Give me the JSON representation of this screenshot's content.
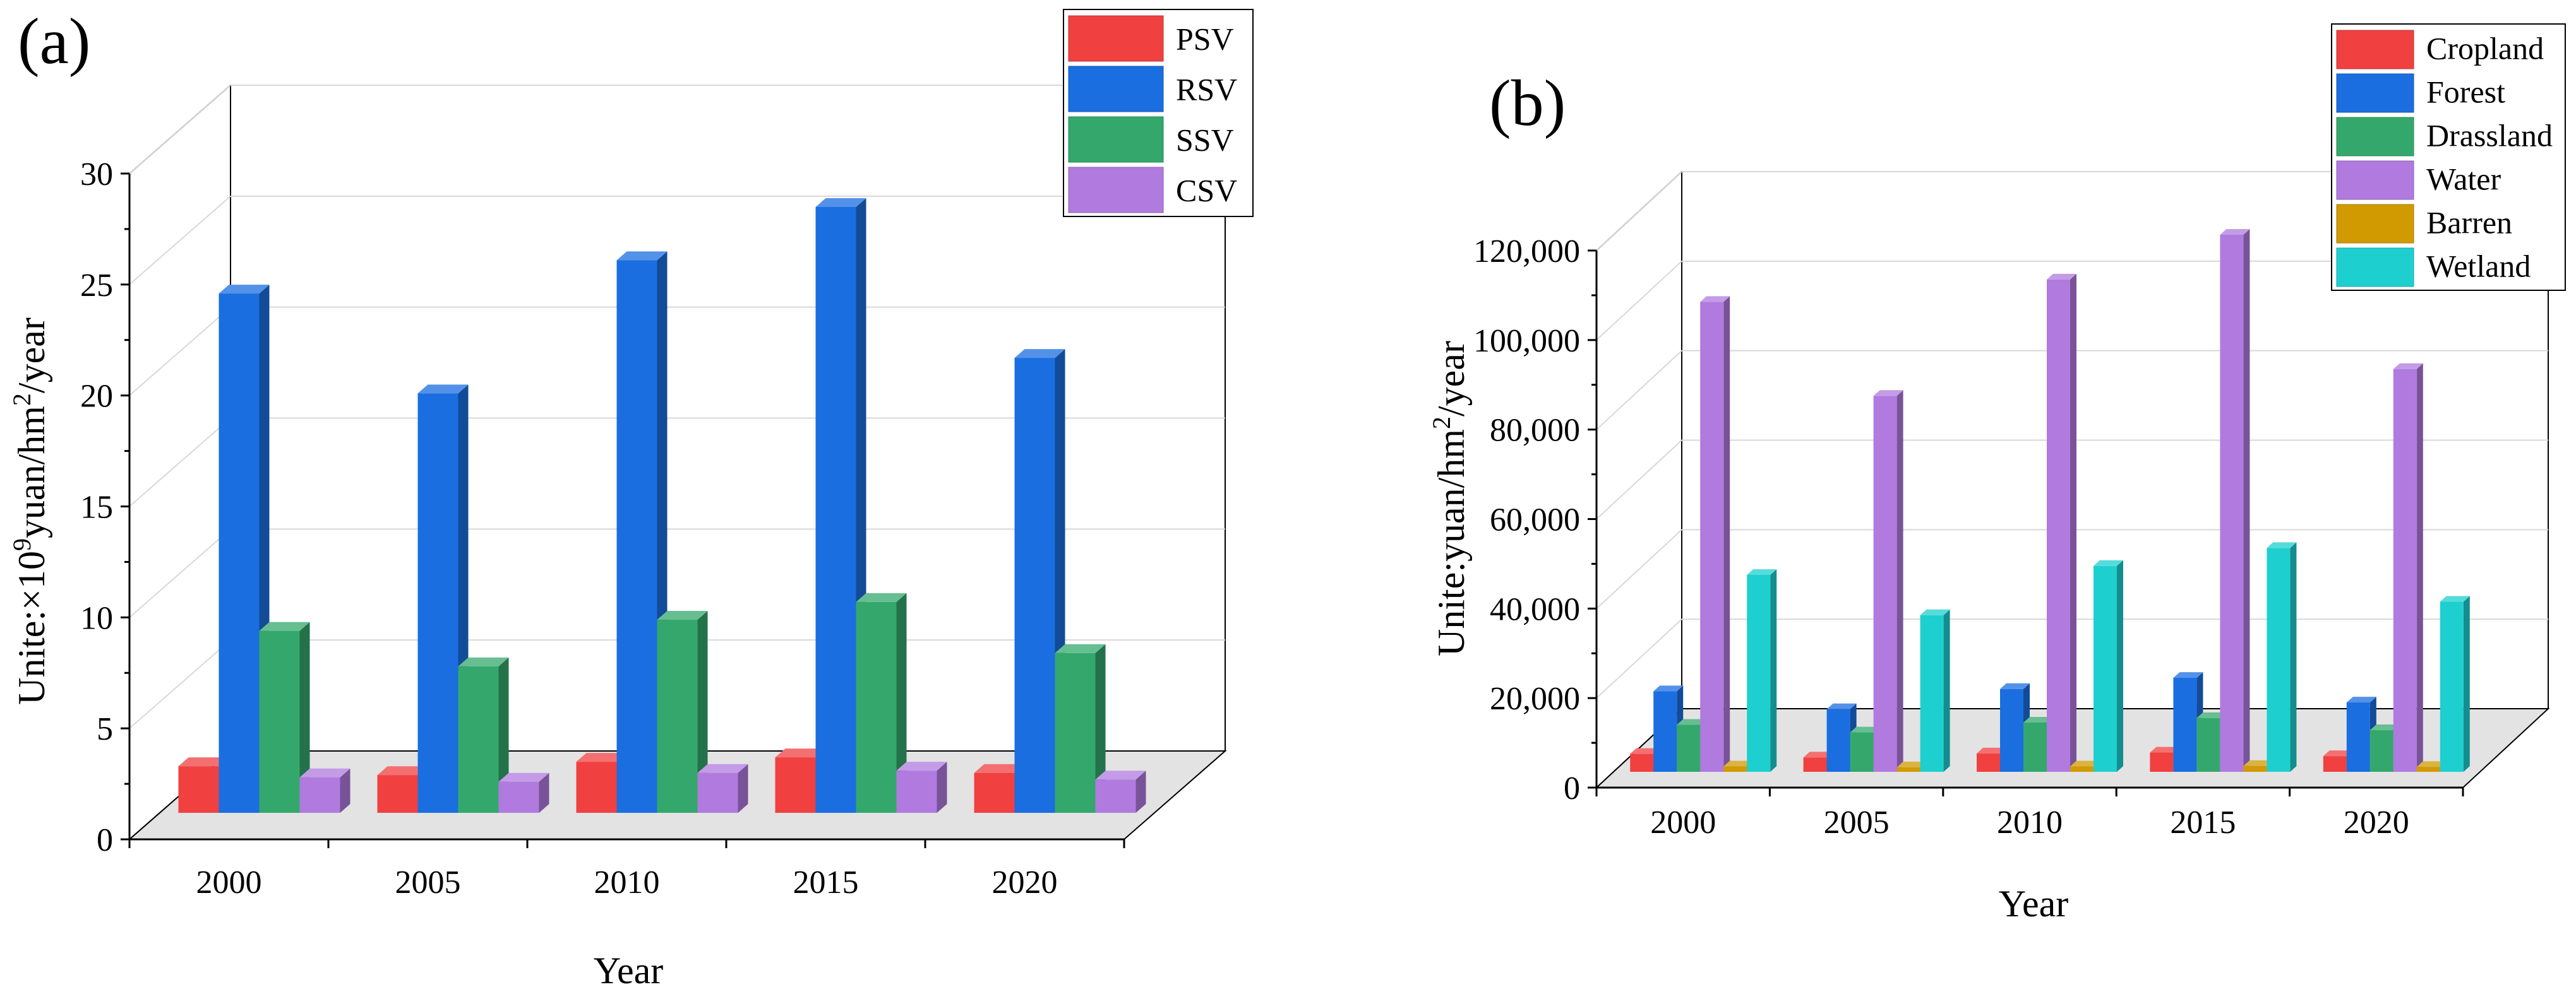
{
  "chart_data": [
    {
      "panel": "(a)",
      "type": "bar",
      "categories": [
        "2000",
        "2005",
        "2010",
        "2015",
        "2020"
      ],
      "series": [
        {
          "name": "PSV",
          "values": [
            2.1,
            1.7,
            2.3,
            2.5,
            1.8
          ],
          "color": "#f04040"
        },
        {
          "name": "RSV",
          "values": [
            23.4,
            18.9,
            24.9,
            27.3,
            20.5
          ],
          "color": "#1a6ee0"
        },
        {
          "name": "SSV",
          "values": [
            8.2,
            6.6,
            8.7,
            9.5,
            7.2
          ],
          "color": "#34a86c"
        },
        {
          "name": "CSV",
          "values": [
            1.6,
            1.4,
            1.8,
            1.9,
            1.5
          ],
          "color": "#b07adf"
        }
      ],
      "xlabel": "Year",
      "ylabel_prefix": "Unite:×10",
      "ylabel_sup1": "9",
      "ylabel_mid": "yuan/hm",
      "ylabel_sup2": "2",
      "ylabel_suffix": "/year",
      "yticks": [
        "0",
        "5",
        "10",
        "15",
        "20",
        "25",
        "30"
      ],
      "ylim": [
        0,
        30
      ]
    },
    {
      "panel": "(b)",
      "type": "bar",
      "categories": [
        "2000",
        "2005",
        "2010",
        "2015",
        "2020"
      ],
      "series": [
        {
          "name": "Cropland",
          "values": [
            4000,
            3200,
            4100,
            4300,
            3500
          ],
          "color": "#f04040"
        },
        {
          "name": "Forest",
          "values": [
            18000,
            14000,
            18500,
            21000,
            15500
          ],
          "color": "#1a6ee0"
        },
        {
          "name": "Drassland",
          "values": [
            10500,
            8800,
            11000,
            12000,
            9300
          ],
          "color": "#34a86c"
        },
        {
          "name": "Water",
          "values": [
            105000,
            84000,
            110000,
            120000,
            90000
          ],
          "color": "#b07adf"
        },
        {
          "name": "Barren",
          "values": [
            1200,
            1000,
            1200,
            1300,
            1100
          ],
          "color": "#d09a00"
        },
        {
          "name": "Wetland",
          "values": [
            44000,
            35000,
            46000,
            50000,
            38000
          ],
          "color": "#1ecfcf"
        }
      ],
      "xlabel": "Year",
      "ylabel_prefix": "Unite:yuan/hm",
      "ylabel_sup": "2",
      "ylabel_suffix": "/year",
      "yticks": [
        "0",
        "20,000",
        "40,000",
        "60,000",
        "80,000",
        "100,000",
        "120,000"
      ],
      "ylim": [
        0,
        120000
      ]
    }
  ]
}
